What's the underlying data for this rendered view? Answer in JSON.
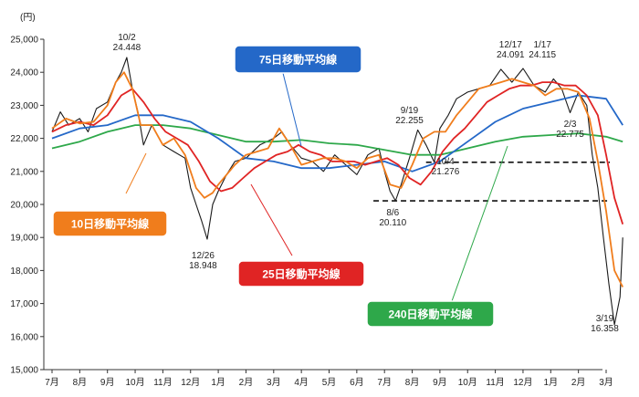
{
  "chart_data": {
    "type": "line",
    "unit": "(円)",
    "ylim": [
      15000,
      25000
    ],
    "y_ticks": [
      "15,000",
      "16,000",
      "17,000",
      "18,000",
      "19,000",
      "20,000",
      "21,000",
      "22,000",
      "23,000",
      "24,000",
      "25,000"
    ],
    "x_labels": [
      "7月",
      "8月",
      "9月",
      "10月",
      "11月",
      "12月",
      "1月",
      "2月",
      "3月",
      "4月",
      "5月",
      "6月",
      "7月",
      "8月",
      "9月",
      "10月",
      "11月",
      "12月",
      "1月",
      "2月",
      "3月"
    ],
    "colors": {
      "price": "#1a1a1a",
      "ma10": "#f07d1c",
      "ma25": "#e02424",
      "ma75": "#2468c8",
      "ma240": "#2ea84a",
      "reference_line": "#111111"
    },
    "series": [
      {
        "name": "10日移動平均線",
        "color": "#f07d1c",
        "x": [
          0,
          0.5,
          1,
          1.5,
          2,
          2.3,
          2.6,
          2.9,
          3.2,
          3.6,
          4,
          4.4,
          4.8,
          5.2,
          5.5,
          5.8,
          6,
          6.3,
          6.6,
          7,
          7.4,
          7.8,
          8.2,
          8.6,
          9,
          9.4,
          9.8,
          10.2,
          10.6,
          11,
          11.4,
          11.8,
          12.2,
          12.6,
          13,
          13.4,
          13.8,
          14.2,
          14.6,
          15,
          15.4,
          15.8,
          16.2,
          16.6,
          17,
          17.4,
          17.8,
          18.2,
          18.6,
          19,
          19.4,
          19.7,
          20,
          20.3,
          20.6
        ],
        "y": [
          22300,
          22600,
          22450,
          22500,
          23000,
          23700,
          24000,
          23500,
          22400,
          22400,
          21800,
          22000,
          21500,
          20500,
          20200,
          20350,
          20600,
          20900,
          21200,
          21500,
          21600,
          21700,
          22300,
          21800,
          21200,
          21300,
          21400,
          21400,
          21300,
          21100,
          21400,
          21500,
          20600,
          20500,
          21200,
          22000,
          22200,
          22200,
          22700,
          23100,
          23500,
          23600,
          23700,
          23800,
          23700,
          23600,
          23300,
          23500,
          23500,
          23400,
          22600,
          21300,
          19800,
          18000,
          17500
        ]
      },
      {
        "name": "25日移動平均線",
        "color": "#e02424",
        "x": [
          0,
          0.5,
          1,
          1.5,
          2,
          2.5,
          2.9,
          3.3,
          3.7,
          4.1,
          4.5,
          4.9,
          5.3,
          5.7,
          6.1,
          6.5,
          6.9,
          7.3,
          7.7,
          8.1,
          8.5,
          8.9,
          9.3,
          9.7,
          10.1,
          10.5,
          10.9,
          11.3,
          11.7,
          12.1,
          12.5,
          12.9,
          13.3,
          13.7,
          14.1,
          14.5,
          14.9,
          15.3,
          15.7,
          16.1,
          16.5,
          16.9,
          17.3,
          17.7,
          18.1,
          18.5,
          18.9,
          19.3,
          19.7,
          20,
          20.3,
          20.6
        ],
        "y": [
          22200,
          22400,
          22500,
          22400,
          22700,
          23300,
          23500,
          23100,
          22600,
          22200,
          22000,
          21800,
          21300,
          20700,
          20400,
          20500,
          20800,
          21100,
          21300,
          21500,
          21600,
          21800,
          21600,
          21500,
          21300,
          21300,
          21300,
          21200,
          21300,
          21400,
          21200,
          20800,
          20600,
          21000,
          21600,
          22000,
          22300,
          22700,
          23100,
          23300,
          23500,
          23600,
          23600,
          23700,
          23700,
          23600,
          23600,
          23300,
          22700,
          21500,
          20200,
          19400
        ]
      },
      {
        "name": "75日移動平均線",
        "color": "#2468c8",
        "x": [
          0,
          1,
          2,
          3,
          4,
          5,
          6,
          7,
          8,
          9,
          10,
          11,
          12,
          13,
          14,
          15,
          16,
          17,
          18,
          19,
          20,
          20.6
        ],
        "y": [
          22000,
          22300,
          22400,
          22700,
          22700,
          22500,
          22000,
          21400,
          21300,
          21100,
          21100,
          21200,
          21300,
          21000,
          21300,
          21900,
          22500,
          22900,
          23100,
          23300,
          23200,
          22400
        ]
      },
      {
        "name": "240日移動平均線",
        "color": "#2ea84a",
        "x": [
          0,
          1,
          2,
          3,
          4,
          5,
          6,
          7,
          8,
          9,
          10,
          11,
          12,
          13,
          14,
          15,
          16,
          17,
          18,
          19,
          20,
          20.6
        ],
        "y": [
          21700,
          21900,
          22200,
          22400,
          22400,
          22300,
          22100,
          21900,
          21900,
          21950,
          21850,
          21800,
          21650,
          21500,
          21500,
          21700,
          21900,
          22050,
          22100,
          22150,
          22050,
          21900
        ]
      }
    ],
    "price_points": {
      "x": [
        0,
        0.3,
        0.6,
        1,
        1.3,
        1.6,
        2,
        2.3,
        2.5,
        2.7,
        2.9,
        3.1,
        3.3,
        3.6,
        4,
        4.4,
        4.8,
        5,
        5.2,
        5.4,
        5.6,
        5.8,
        6,
        6.3,
        6.6,
        7,
        7.5,
        8,
        8.3,
        8.6,
        9,
        9.4,
        9.8,
        10.2,
        10.6,
        11,
        11.4,
        11.8,
        12,
        12.2,
        12.4,
        12.6,
        12.9,
        13.2,
        13.5,
        13.8,
        14,
        14.3,
        14.6,
        15,
        15.4,
        15.8,
        16.2,
        16.6,
        17,
        17.4,
        17.8,
        18.1,
        18.4,
        18.7,
        19,
        19.3,
        19.5,
        19.7,
        19.9,
        20.1,
        20.3,
        20.5,
        20.6
      ],
      "y": [
        22200,
        22800,
        22400,
        22600,
        22200,
        22900,
        23100,
        23700,
        24000,
        24448,
        23500,
        22800,
        21800,
        22400,
        21800,
        21600,
        21400,
        20500,
        20000,
        19500,
        18948,
        20000,
        20400,
        20900,
        21300,
        21400,
        21800,
        22000,
        22200,
        21800,
        21400,
        21300,
        21000,
        21500,
        21200,
        20900,
        21500,
        21700,
        21000,
        20400,
        20110,
        20600,
        21400,
        22255,
        21800,
        21276,
        22300,
        22700,
        23200,
        23400,
        23500,
        23600,
        24091,
        23700,
        24115,
        23600,
        23400,
        23800,
        23500,
        22775,
        23400,
        23000,
        21500,
        20500,
        19000,
        17600,
        16358,
        17200,
        19000
      ]
    },
    "annotations": [
      {
        "date": "10/2",
        "value": "24.448"
      },
      {
        "date": "12/26",
        "value": "18.948"
      },
      {
        "date": "8/6",
        "value": "20.110"
      },
      {
        "date": "9/19",
        "value": "22.255"
      },
      {
        "date": "10/4",
        "value": "21.276"
      },
      {
        "date": "12/17",
        "value": "24.091"
      },
      {
        "date": "1/17",
        "value": "24.115"
      },
      {
        "date": "2/3",
        "value": "22.775"
      },
      {
        "date": "3/19",
        "value": "16.358"
      }
    ],
    "reference_lines": [
      21276,
      20110
    ],
    "legend": [
      "75日移動平均線",
      "10日移動平均線",
      "25日移動平均線",
      "240日移動平均線"
    ],
    "grid": false
  }
}
